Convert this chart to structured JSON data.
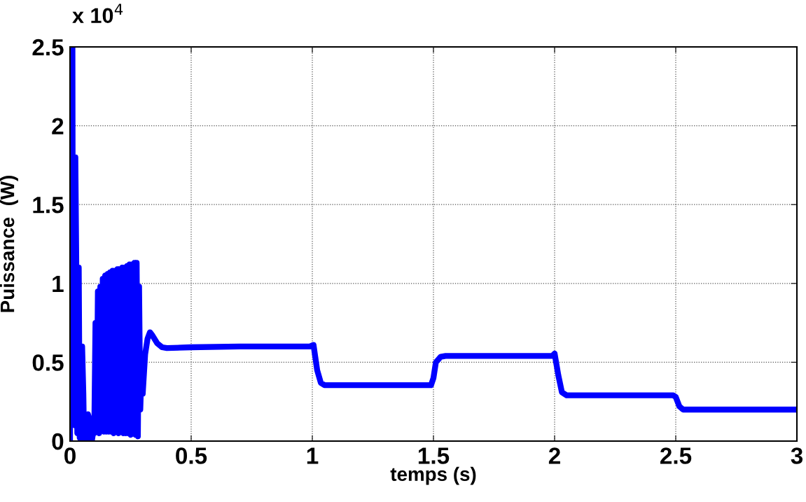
{
  "chart_data": {
    "type": "line",
    "xlabel": "temps (s)",
    "ylabel": "Puissance  (W)",
    "annotations": [
      "x 10$^{4}$"
    ],
    "x": [
      0,
      0.003,
      0.01,
      0.012,
      0.014,
      0.018,
      0.02,
      0.022,
      0.026,
      0.03,
      0.032,
      0.036,
      0.04,
      0.044,
      0.05,
      0.055,
      0.058,
      0.07,
      0.074,
      0.078,
      0.08,
      0.09,
      0.095,
      0.1,
      0.105,
      0.11,
      0.115,
      0.12,
      0.125,
      0.13,
      0.135,
      0.14,
      0.145,
      0.15,
      0.155,
      0.16,
      0.165,
      0.17,
      0.175,
      0.18,
      0.185,
      0.19,
      0.195,
      0.2,
      0.205,
      0.21,
      0.215,
      0.22,
      0.225,
      0.23,
      0.235,
      0.24,
      0.245,
      0.25,
      0.255,
      0.26,
      0.265,
      0.27,
      0.275,
      0.28,
      0.285,
      0.29,
      0.295,
      0.3,
      0.31,
      0.32,
      0.33,
      0.34,
      0.36,
      0.38,
      0.4,
      0.5,
      0.7,
      0.99,
      1.005,
      1.02,
      1.035,
      1.05,
      1.49,
      1.5,
      1.51,
      1.53,
      1.55,
      1.99,
      2.0,
      2.015,
      2.03,
      2.05,
      2.49,
      2.5,
      2.515,
      2.53,
      3
    ],
    "series": [
      {
        "color": "#0000ff",
        "values": [
          0,
          2.5,
          2.5,
          0.3,
          1.8,
          1.8,
          0.1,
          1.8,
          1.1,
          0.05,
          1.1,
          1.1,
          0.02,
          0.6,
          0.6,
          0.3,
          0,
          0,
          0.17,
          0.15,
          0,
          0,
          0.05,
          0.05,
          0.75,
          0.06,
          0.95,
          0.05,
          0.98,
          0.07,
          1.03,
          0.06,
          1.05,
          0.06,
          1.06,
          0.06,
          1.07,
          0.06,
          1.08,
          0.05,
          1.08,
          0.06,
          1.09,
          0.05,
          1.09,
          0.06,
          1.1,
          0.05,
          1.1,
          0.05,
          1.11,
          0.05,
          1.12,
          0.04,
          1.12,
          0.05,
          1.13,
          0.04,
          1.13,
          0.03,
          0.98,
          0.2,
          0.45,
          0.3,
          0.55,
          0.65,
          0.69,
          0.67,
          0.62,
          0.595,
          0.59,
          0.595,
          0.6,
          0.6,
          0.61,
          0.45,
          0.37,
          0.355,
          0.355,
          0.4,
          0.5,
          0.535,
          0.54,
          0.54,
          0.555,
          0.42,
          0.31,
          0.29,
          0.29,
          0.28,
          0.22,
          0.2,
          0.2
        ]
      }
    ],
    "xlim": [
      0,
      3
    ],
    "xticks": [
      0,
      0.5,
      1,
      1.5,
      2,
      2.5,
      3
    ],
    "ylim": [
      0,
      2.5
    ],
    "yticks": [
      0,
      0.5,
      1,
      1.5,
      2,
      2.5
    ],
    "grid": true,
    "line_style": "solid",
    "marker": "none"
  }
}
